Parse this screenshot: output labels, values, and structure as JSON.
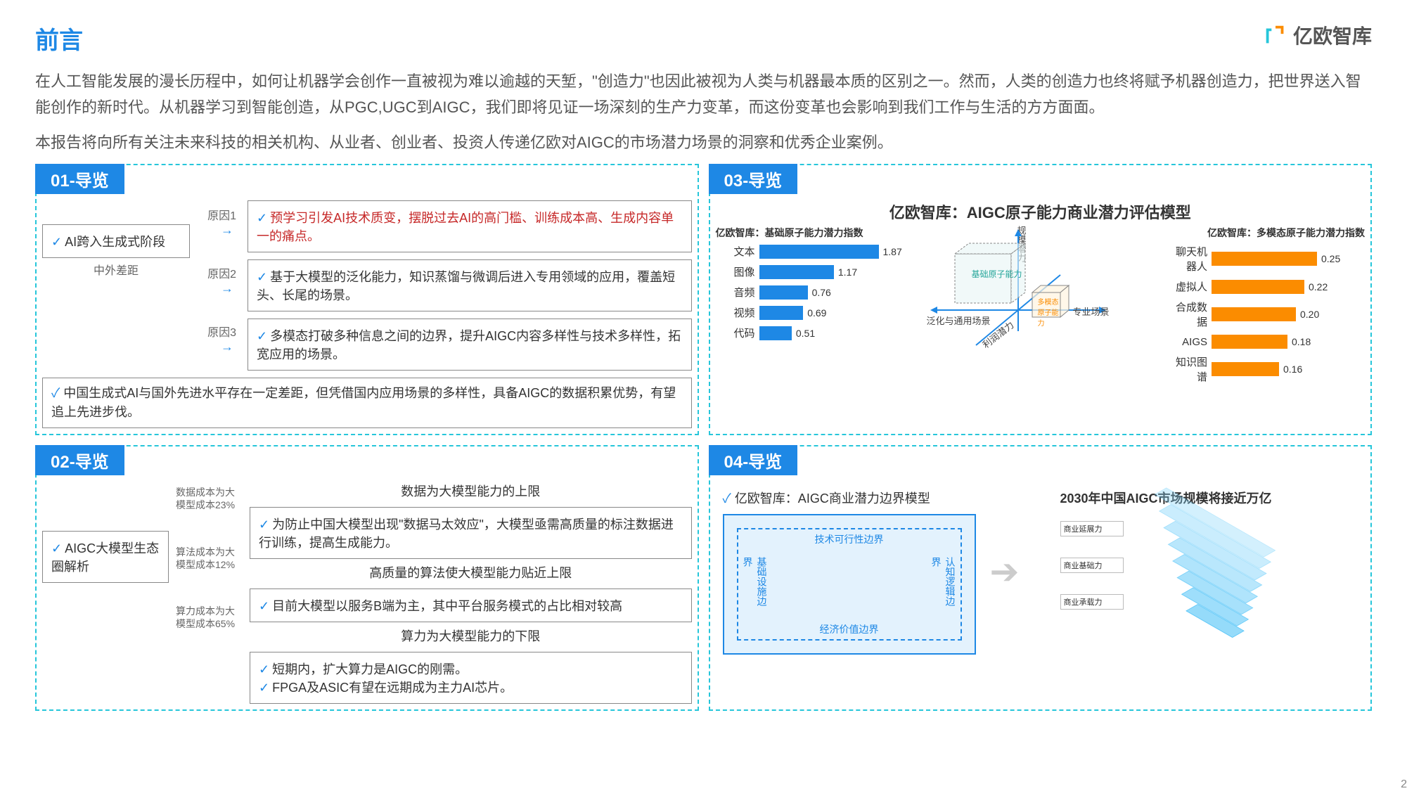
{
  "page": {
    "number": "2"
  },
  "header": {
    "title": "前言",
    "logo_text": "亿欧智库"
  },
  "intro": {
    "p1": "在人工智能发展的漫长历程中，如何让机器学会创作一直被视为难以逾越的天堑，\"创造力\"也因此被视为人类与机器最本质的区别之一。然而，人类的创造力也终将赋予机器创造力，把世界送入智能创作的新时代。从机器学习到智能创造，从PGC,UGC到AIGC，我们即将见证一场深刻的生产力变革，而这份变革也会影响到我们工作与生活的方方面面。",
    "p2": "本报告将向所有关注未来科技的相关机构、从业者、创业者、投资人传递亿欧对AIGC的市场潜力场景的洞察和优秀企业案例。"
  },
  "panel01": {
    "tab": "01-导览",
    "root": "AI跨入生成式阶段",
    "r1_label": "原因1",
    "r1": "预学习引发AI技术质变，摆脱过去AI的高门槛、训练成本高、生成内容单一的痛点。",
    "r2_label": "原因2",
    "r2": "基于大模型的泛化能力，知识蒸馏与微调后进入专用领域的应用，覆盖短头、长尾的场景。",
    "r3_label": "原因3",
    "r3": "多模态打破多种信息之间的边界，提升AIGC内容多样性与技术多样性，拓宽应用的场景。",
    "gap_label": "中外差距",
    "gap": "中国生成式AI与国外先进水平存在一定差距，但凭借国内应用场景的多样性，具备AIGC的数据积累优势，有望追上先进步伐。"
  },
  "panel02": {
    "tab": "02-导览",
    "root": "AIGC大模型生态圈解析",
    "c1_pct": "数据成本为大模型成本23%",
    "c1_h": "数据为大模型能力的上限",
    "c1": "为防止中国大模型出现\"数据马太效应\"，大模型亟需高质量的标注数据进行训练，提高生成能力。",
    "c2_pct": "算法成本为大模型成本12%",
    "c2_h": "高质量的算法使大模型能力贴近上限",
    "c2": "目前大模型以服务B端为主，其中平台服务模式的占比相对较高",
    "c3_pct": "算力成本为大模型成本65%",
    "c3_h": "算力为大模型能力的下限",
    "c3a": "短期内，扩大算力是AIGC的刚需。",
    "c3b": "FPGA及ASIC有望在远期成为主力AI芯片。"
  },
  "panel03": {
    "tab": "03-导览",
    "title": "亿欧智库：AIGC原子能力商业潜力评估模型",
    "left_title": "亿欧智库：基础原子能力潜力指数",
    "right_title": "亿欧智库：多模态原子能力潜力指数",
    "left": {
      "labels": [
        "文本",
        "图像",
        "音频",
        "视频",
        "代码"
      ],
      "values": [
        1.87,
        1.17,
        0.76,
        0.69,
        0.51
      ],
      "max": 1.87,
      "bar_color": "#1e88e5"
    },
    "right": {
      "labels": [
        "聊天机器人",
        "虚拟人",
        "合成数据",
        "AIGS",
        "知识图谱"
      ],
      "values": [
        0.25,
        0.22,
        0.2,
        0.18,
        0.16
      ],
      "max": 0.25,
      "bar_color": "#fb8c00"
    },
    "cube_labels": {
      "big": "基础原子能力",
      "small": "多模态原子能力",
      "y": "规模潜力",
      "x_left": "泛化与通用场景",
      "x_right": "专业场景",
      "diag": "利润潜力"
    }
  },
  "panel04": {
    "tab": "04-导览",
    "left_title": "亿欧智库：AIGC商业潜力边界模型",
    "edges": {
      "top": "技术可行性边界",
      "left": "基础设施边界",
      "right": "认知逻辑边界",
      "bottom": "经济价值边界"
    },
    "right_title": "2030年中国AIGC市场规模将接近万亿",
    "layer_labels": [
      "商业延展力",
      "商业基础力",
      "商业承载力"
    ]
  },
  "colors": {
    "primary": "#1e88e5",
    "teal": "#26c6da",
    "orange": "#fb8c00",
    "red": "#c62828",
    "light_blue": "#e3f2fd"
  }
}
